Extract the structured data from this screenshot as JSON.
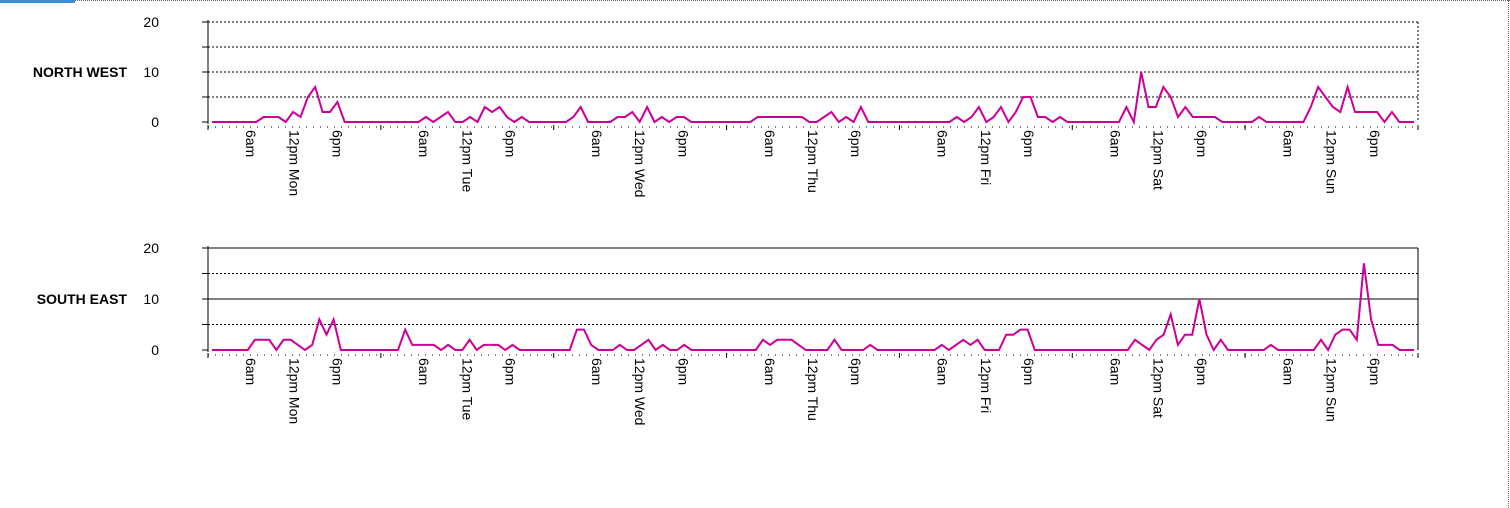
{
  "chart_data": [
    {
      "type": "line",
      "title": "NORTH WEST",
      "y_ticks": [
        "0",
        "10",
        "20"
      ],
      "ylim": [
        0,
        20
      ],
      "x_tick_labels": [
        "6am",
        "12pm Mon",
        "6pm",
        "6am",
        "12pm Tue",
        "6pm",
        "6am",
        "12pm Wed",
        "6pm",
        "6am",
        "12pm Thu",
        "6pm",
        "6am",
        "12pm Fri",
        "6pm",
        "6am",
        "12pm Sat",
        "6pm",
        "6am",
        "12pm Sun",
        "6pm"
      ],
      "series": [
        {
          "color": "#cc0099",
          "values": [
            0,
            0,
            0,
            0,
            0,
            0,
            0,
            1,
            1,
            1,
            0,
            2,
            1,
            5,
            7,
            2,
            2,
            4,
            0,
            0,
            0,
            0,
            0,
            0,
            0,
            0,
            0,
            0,
            0,
            1,
            0,
            1,
            2,
            0,
            0,
            1,
            0,
            3,
            2,
            3,
            1,
            0,
            1,
            0,
            0,
            0,
            0,
            0,
            0,
            1,
            3,
            0,
            0,
            0,
            0,
            1,
            1,
            2,
            0,
            3,
            0,
            1,
            0,
            1,
            1,
            0,
            0,
            0,
            0,
            0,
            0,
            0,
            0,
            0,
            1,
            1,
            1,
            1,
            1,
            1,
            1,
            0,
            0,
            1,
            2,
            0,
            1,
            0,
            3,
            0,
            0,
            0,
            0,
            0,
            0,
            0,
            0,
            0,
            0,
            0,
            0,
            1,
            0,
            1,
            3,
            0,
            1,
            3,
            0,
            2,
            5,
            5,
            1,
            1,
            0,
            1,
            0,
            0,
            0,
            0,
            0,
            0,
            0,
            0,
            3,
            0,
            10,
            3,
            3,
            7,
            5,
            1,
            3,
            1,
            1,
            1,
            1,
            0,
            0,
            0,
            0,
            0,
            1,
            0,
            0,
            0,
            0,
            0,
            0,
            3,
            7,
            5,
            3,
            2,
            7,
            2,
            2,
            2,
            2,
            0,
            2,
            0,
            0,
            0
          ]
        }
      ]
    },
    {
      "type": "line",
      "title": "SOUTH EAST",
      "y_ticks": [
        "0",
        "10",
        "20"
      ],
      "ylim": [
        0,
        20
      ],
      "x_tick_labels": [
        "6am",
        "12pm Mon",
        "6pm",
        "6am",
        "12pm Tue",
        "6pm",
        "6am",
        "12pm Wed",
        "6pm",
        "6am",
        "12pm Thu",
        "6pm",
        "6am",
        "12pm Fri",
        "6pm",
        "6am",
        "12pm Sat",
        "6pm",
        "6am",
        "12pm Sun",
        "6pm"
      ],
      "series": [
        {
          "color": "#cc0099",
          "values": [
            0,
            0,
            0,
            0,
            0,
            0,
            2,
            2,
            2,
            0,
            2,
            2,
            1,
            0,
            1,
            6,
            3,
            6,
            0,
            0,
            0,
            0,
            0,
            0,
            0,
            0,
            0,
            4,
            1,
            1,
            1,
            1,
            0,
            1,
            0,
            0,
            2,
            0,
            1,
            1,
            1,
            0,
            1,
            0,
            0,
            0,
            0,
            0,
            0,
            0,
            0,
            4,
            4,
            1,
            0,
            0,
            0,
            1,
            0,
            0,
            1,
            2,
            0,
            1,
            0,
            0,
            1,
            0,
            0,
            0,
            0,
            0,
            0,
            0,
            0,
            0,
            0,
            2,
            1,
            2,
            2,
            2,
            1,
            0,
            0,
            0,
            0,
            2,
            0,
            0,
            0,
            0,
            1,
            0,
            0,
            0,
            0,
            0,
            0,
            0,
            0,
            0,
            1,
            0,
            1,
            2,
            1,
            2,
            0,
            0,
            0,
            3,
            3,
            4,
            4,
            0,
            0,
            0,
            0,
            0,
            0,
            0,
            0,
            0,
            0,
            0,
            0,
            0,
            0,
            2,
            1,
            0,
            2,
            3,
            7,
            1,
            3,
            3,
            10,
            3,
            0,
            2,
            0,
            0,
            0,
            0,
            0,
            0,
            1,
            0,
            0,
            0,
            0,
            0,
            0,
            2,
            0,
            3,
            4,
            4,
            2,
            17,
            6,
            1,
            1,
            1,
            0,
            0,
            0
          ]
        }
      ]
    }
  ]
}
